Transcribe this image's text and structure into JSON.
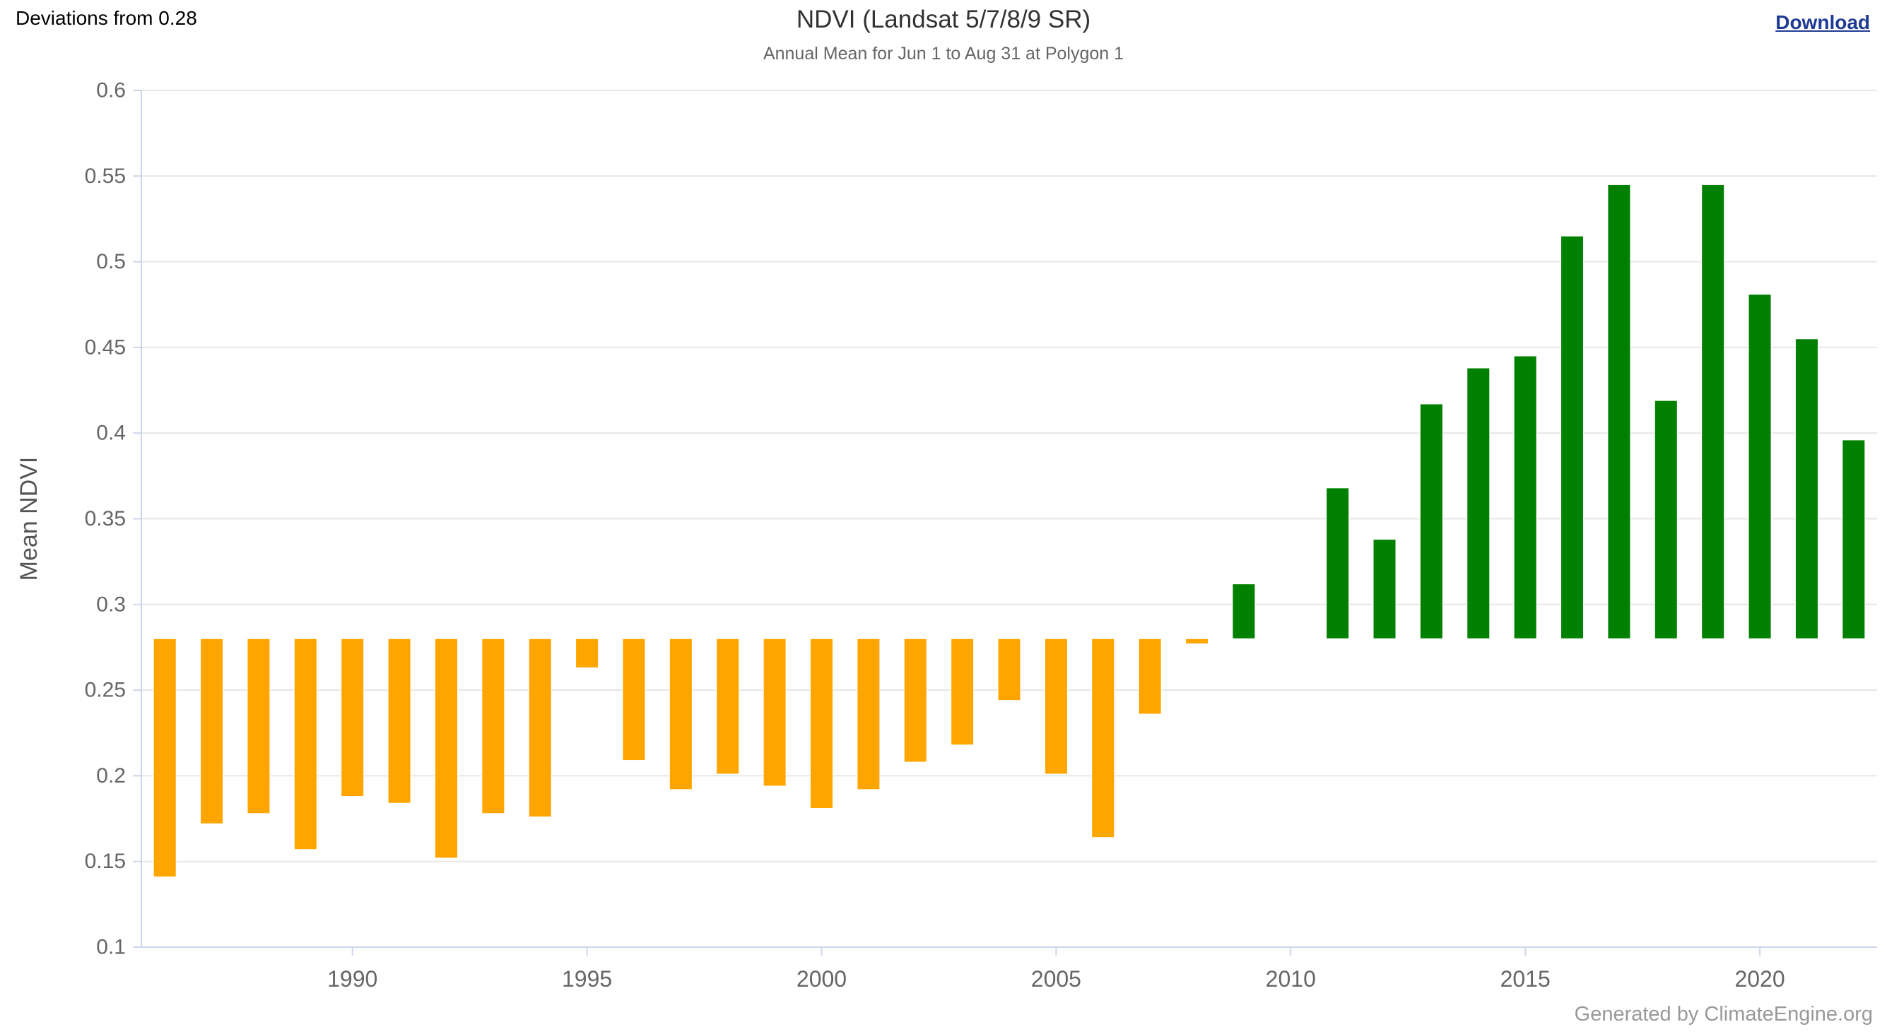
{
  "header": {
    "deviations_label": "Deviations from 0.28",
    "download_label": "Download"
  },
  "footer": {
    "credit": "Generated by ClimateEngine.org"
  },
  "style": {
    "grid_color": "#e6e6e6",
    "axis_color": "#ccd6eb",
    "tick_label_color": "#666666",
    "axis_title_color": "#555555",
    "title_color": "#333333",
    "subtitle_color": "#666666",
    "link_color": "#1f3a93",
    "credit_color": "#999999",
    "bar_border_color": "#ffffff"
  },
  "chart_data": {
    "type": "bar",
    "title": "NDVI (Landsat 5/7/8/9 SR)",
    "subtitle": "Annual Mean for Jun 1 to Aug 31 at Polygon 1",
    "ylabel": "Mean NDVI",
    "xlabel": "",
    "baseline": 0.28,
    "ylim": [
      0.1,
      0.6
    ],
    "yticks": [
      0.1,
      0.15,
      0.2,
      0.25,
      0.3,
      0.35,
      0.4,
      0.45,
      0.5,
      0.55,
      0.6
    ],
    "xtick_years": [
      1990,
      1995,
      2000,
      2005,
      2010,
      2015,
      2020
    ],
    "grid": true,
    "legend_position": "none",
    "colors": {
      "above_baseline": "#008000",
      "below_baseline": "#FFA500"
    },
    "categories": [
      1986,
      1987,
      1988,
      1989,
      1990,
      1991,
      1992,
      1993,
      1994,
      1995,
      1996,
      1997,
      1998,
      1999,
      2000,
      2001,
      2002,
      2003,
      2004,
      2005,
      2006,
      2007,
      2008,
      2009,
      2010,
      2011,
      2012,
      2013,
      2014,
      2015,
      2016,
      2017,
      2018,
      2019,
      2020,
      2021,
      2022
    ],
    "values": [
      0.141,
      0.172,
      0.178,
      0.157,
      0.188,
      0.184,
      0.152,
      0.178,
      0.176,
      0.263,
      0.209,
      0.192,
      0.201,
      0.194,
      0.181,
      0.192,
      0.208,
      0.218,
      0.244,
      0.201,
      0.164,
      0.236,
      0.277,
      0.312,
      null,
      0.368,
      0.338,
      0.417,
      0.438,
      0.445,
      0.515,
      0.545,
      0.419,
      0.545,
      0.481,
      0.455,
      0.396
    ]
  }
}
